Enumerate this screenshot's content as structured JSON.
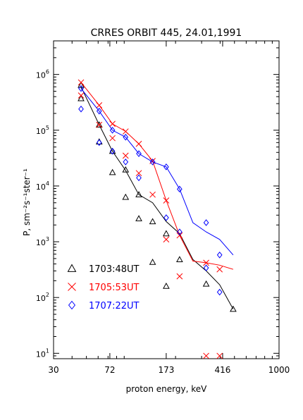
{
  "chart_data": {
    "type": "scatter",
    "title": "CRRES ORBIT 445, 24.01,1991",
    "xlabel": "proton energy, keV",
    "ylabel": "P, sm⁻²s⁻¹ster⁻¹",
    "xscale": "log",
    "yscale": "log",
    "xlim": [
      30,
      1000
    ],
    "ylim": [
      8,
      4000000
    ],
    "x_ticks": [
      {
        "value": 30,
        "label": "30"
      },
      {
        "value": 72,
        "label": "72"
      },
      {
        "value": 173,
        "label": "173"
      },
      {
        "value": 416,
        "label": "416"
      },
      {
        "value": 1000,
        "label": "1000"
      }
    ],
    "y_ticks": [
      {
        "value": 10,
        "base": "10",
        "exp": "1"
      },
      {
        "value": 100,
        "base": "10",
        "exp": "2"
      },
      {
        "value": 1000,
        "base": "10",
        "exp": "3"
      },
      {
        "value": 10000,
        "base": "10",
        "exp": "4"
      },
      {
        "value": 100000,
        "base": "10",
        "exp": "5"
      },
      {
        "value": 1000000,
        "base": "10",
        "exp": "6"
      }
    ],
    "grid": false,
    "legend_position": "bottom-left",
    "series": [
      {
        "name": "1703:48UT",
        "color": "#000000",
        "marker": "triangle",
        "line": {
          "x": [
            46,
            61,
            75,
            92,
            113,
            140,
            173,
            213,
            262,
            322,
            397,
            490
          ],
          "y": [
            600000,
            125000,
            42000,
            19000,
            7000,
            5000,
            2300,
            1400,
            480,
            300,
            170,
            62
          ]
        },
        "points": [
          {
            "x": 46,
            "y": 640000
          },
          {
            "x": 46,
            "y": 370000
          },
          {
            "x": 61,
            "y": 125000
          },
          {
            "x": 61,
            "y": 62000
          },
          {
            "x": 75,
            "y": 42000
          },
          {
            "x": 75,
            "y": 17500
          },
          {
            "x": 92,
            "y": 19500
          },
          {
            "x": 92,
            "y": 6300
          },
          {
            "x": 113,
            "y": 7000
          },
          {
            "x": 113,
            "y": 2600
          },
          {
            "x": 140,
            "y": 2300
          },
          {
            "x": 140,
            "y": 430
          },
          {
            "x": 173,
            "y": 1400
          },
          {
            "x": 173,
            "y": 160
          },
          {
            "x": 213,
            "y": 480
          },
          {
            "x": 322,
            "y": 175
          },
          {
            "x": 490,
            "y": 62
          }
        ]
      },
      {
        "name": "1705:53UT",
        "color": "#ff0000",
        "marker": "x",
        "line": {
          "x": [
            46,
            61,
            75,
            92,
            113,
            140,
            173,
            213,
            262,
            322,
            397,
            490
          ],
          "y": [
            720000,
            280000,
            130000,
            95000,
            57000,
            28000,
            5500,
            1300,
            450,
            420,
            380,
            320
          ]
        },
        "points": [
          {
            "x": 46,
            "y": 720000
          },
          {
            "x": 46,
            "y": 420000
          },
          {
            "x": 61,
            "y": 280000
          },
          {
            "x": 61,
            "y": 125000
          },
          {
            "x": 75,
            "y": 130000
          },
          {
            "x": 75,
            "y": 72000
          },
          {
            "x": 92,
            "y": 95000
          },
          {
            "x": 92,
            "y": 35000
          },
          {
            "x": 113,
            "y": 57000
          },
          {
            "x": 113,
            "y": 17000
          },
          {
            "x": 140,
            "y": 28000
          },
          {
            "x": 140,
            "y": 7000
          },
          {
            "x": 173,
            "y": 5500
          },
          {
            "x": 173,
            "y": 1100
          },
          {
            "x": 213,
            "y": 1300
          },
          {
            "x": 213,
            "y": 240
          },
          {
            "x": 322,
            "y": 420
          },
          {
            "x": 322,
            "y": 9
          },
          {
            "x": 397,
            "y": 320
          },
          {
            "x": 397,
            "y": 9
          }
        ]
      },
      {
        "name": "1707:22UT",
        "color": "#0000ff",
        "marker": "diamond",
        "line": {
          "x": [
            46,
            61,
            75,
            92,
            113,
            140,
            173,
            213,
            262,
            322,
            397,
            490
          ],
          "y": [
            560000,
            220000,
            100000,
            75000,
            38000,
            27000,
            22000,
            8800,
            2200,
            1500,
            1100,
            580
          ]
        },
        "points": [
          {
            "x": 46,
            "y": 560000
          },
          {
            "x": 46,
            "y": 240000
          },
          {
            "x": 61,
            "y": 220000
          },
          {
            "x": 61,
            "y": 60000
          },
          {
            "x": 75,
            "y": 100000
          },
          {
            "x": 75,
            "y": 42000
          },
          {
            "x": 92,
            "y": 75000
          },
          {
            "x": 92,
            "y": 27000
          },
          {
            "x": 113,
            "y": 38000
          },
          {
            "x": 113,
            "y": 14000
          },
          {
            "x": 140,
            "y": 27000
          },
          {
            "x": 173,
            "y": 22000
          },
          {
            "x": 173,
            "y": 2700
          },
          {
            "x": 213,
            "y": 8800
          },
          {
            "x": 213,
            "y": 1500
          },
          {
            "x": 322,
            "y": 2200
          },
          {
            "x": 322,
            "y": 340
          },
          {
            "x": 397,
            "y": 580
          },
          {
            "x": 397,
            "y": 125
          }
        ]
      }
    ]
  }
}
